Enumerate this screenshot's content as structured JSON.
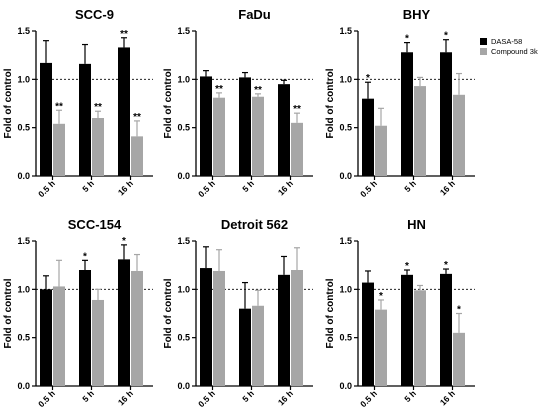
{
  "chart_data": [
    {
      "type": "bar",
      "title": "SCC-9",
      "ylabel": "Fold of control",
      "categories": [
        "0.5 h",
        "5 h",
        "16 h"
      ],
      "ylim": [
        0,
        1.5
      ],
      "yticks": [
        "0.0",
        "0.5",
        "1.0",
        "1.5"
      ],
      "reference_line": 1.0,
      "series": [
        {
          "name": "DASA-58",
          "values": [
            1.17,
            1.16,
            1.33
          ],
          "errors": [
            0.23,
            0.2,
            0.1
          ],
          "marks": [
            "",
            "",
            "**"
          ]
        },
        {
          "name": "Compound 3k",
          "values": [
            0.54,
            0.6,
            0.41
          ],
          "errors": [
            0.14,
            0.07,
            0.16
          ],
          "marks": [
            "**",
            "**",
            "**"
          ]
        }
      ]
    },
    {
      "type": "bar",
      "title": "FaDu",
      "ylabel": "Fold of control",
      "categories": [
        "0.5 h",
        "5 h",
        "16 h"
      ],
      "ylim": [
        0,
        1.5
      ],
      "yticks": [
        "0.0",
        "0.5",
        "1.0",
        "1.5"
      ],
      "reference_line": 1.0,
      "series": [
        {
          "name": "DASA-58",
          "values": [
            1.03,
            1.02,
            0.95
          ],
          "errors": [
            0.06,
            0.05,
            0.04
          ],
          "marks": [
            "",
            "",
            ""
          ]
        },
        {
          "name": "Compound 3k",
          "values": [
            0.81,
            0.82,
            0.55
          ],
          "errors": [
            0.05,
            0.03,
            0.1
          ],
          "marks": [
            "**",
            "**",
            "**"
          ]
        }
      ]
    },
    {
      "type": "bar",
      "title": "BHY",
      "ylabel": "Fold of control",
      "categories": [
        "0.5 h",
        "5 h",
        "16 h"
      ],
      "ylim": [
        0,
        1.5
      ],
      "yticks": [
        "0.0",
        "0.5",
        "1.0",
        "1.5"
      ],
      "reference_line": 1.0,
      "series": [
        {
          "name": "DASA-58",
          "values": [
            0.8,
            1.28,
            1.28
          ],
          "errors": [
            0.17,
            0.1,
            0.13
          ],
          "marks": [
            "*",
            "*",
            "*"
          ]
        },
        {
          "name": "Compound 3k",
          "values": [
            0.52,
            0.93,
            0.84
          ],
          "errors": [
            0.18,
            0.09,
            0.22
          ],
          "marks": [
            "",
            "",
            ""
          ]
        }
      ]
    },
    {
      "type": "bar",
      "title": "SCC-154",
      "ylabel": "Fold of control",
      "categories": [
        "0.5 h",
        "5 h",
        "16 h"
      ],
      "ylim": [
        0,
        1.5
      ],
      "yticks": [
        "0.0",
        "0.5",
        "1.0",
        "1.5"
      ],
      "reference_line": 1.0,
      "series": [
        {
          "name": "DASA-58",
          "values": [
            1.0,
            1.2,
            1.31
          ],
          "errors": [
            0.14,
            0.1,
            0.15
          ],
          "marks": [
            "",
            "*",
            "*"
          ]
        },
        {
          "name": "Compound 3k",
          "values": [
            1.03,
            0.89,
            1.19
          ],
          "errors": [
            0.27,
            0.11,
            0.17
          ],
          "marks": [
            "",
            "",
            ""
          ]
        }
      ]
    },
    {
      "type": "bar",
      "title": "Detroit 562",
      "ylabel": "Fold of control",
      "categories": [
        "0.5 h",
        "5 h",
        "16 h"
      ],
      "ylim": [
        0,
        1.5
      ],
      "yticks": [
        "0.0",
        "0.5",
        "1.0",
        "1.5"
      ],
      "reference_line": 1.0,
      "series": [
        {
          "name": "DASA-58",
          "values": [
            1.22,
            0.8,
            1.15
          ],
          "errors": [
            0.22,
            0.27,
            0.19
          ],
          "marks": [
            "",
            "",
            ""
          ]
        },
        {
          "name": "Compound 3k",
          "values": [
            1.19,
            0.83,
            1.2
          ],
          "errors": [
            0.22,
            0.16,
            0.23
          ],
          "marks": [
            "",
            "",
            ""
          ]
        }
      ]
    },
    {
      "type": "bar",
      "title": "HN",
      "ylabel": "Fold of control",
      "categories": [
        "0.5 h",
        "5 h",
        "16 h"
      ],
      "ylim": [
        0,
        1.5
      ],
      "yticks": [
        "0.0",
        "0.5",
        "1.0",
        "1.5"
      ],
      "reference_line": 1.0,
      "series": [
        {
          "name": "DASA-58",
          "values": [
            1.07,
            1.15,
            1.16
          ],
          "errors": [
            0.12,
            0.05,
            0.05
          ],
          "marks": [
            "",
            "*",
            "*"
          ]
        },
        {
          "name": "Compound 3k",
          "values": [
            0.79,
            0.99,
            0.55
          ],
          "errors": [
            0.1,
            0.05,
            0.2
          ],
          "marks": [
            "*",
            "",
            "*"
          ]
        }
      ]
    }
  ],
  "legend": {
    "placement": "top-right",
    "items": [
      {
        "label": "DASA-58",
        "color": "#000000"
      },
      {
        "label": "Compound 3k",
        "color": "#a6a6a6"
      }
    ]
  },
  "colors": {
    "series1": "#000000",
    "series2": "#a6a6a6",
    "reference_line": "#000000"
  }
}
